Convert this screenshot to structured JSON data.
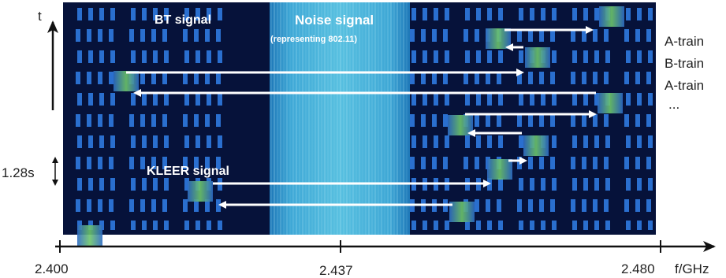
{
  "axes": {
    "time_label": "t",
    "frequency_label": "f/GHz",
    "slot_duration_label": "1.28s",
    "ticks": [
      "2.400",
      "2.437",
      "2.480"
    ]
  },
  "labels": {
    "bt_signal": "BT signal",
    "noise_signal": "Noise signal",
    "noise_note": "(representing 802.11)",
    "kleer_signal": "KLEER signal"
  },
  "train_legend": [
    "A-train",
    "B-train",
    "A-train",
    "..."
  ],
  "colors": {
    "background": "#06123a",
    "bt_bar": "#2a6fcf",
    "noise": "#4fb3d9",
    "kleer": "#5fbf6a",
    "arrow": "#ffffff"
  }
}
